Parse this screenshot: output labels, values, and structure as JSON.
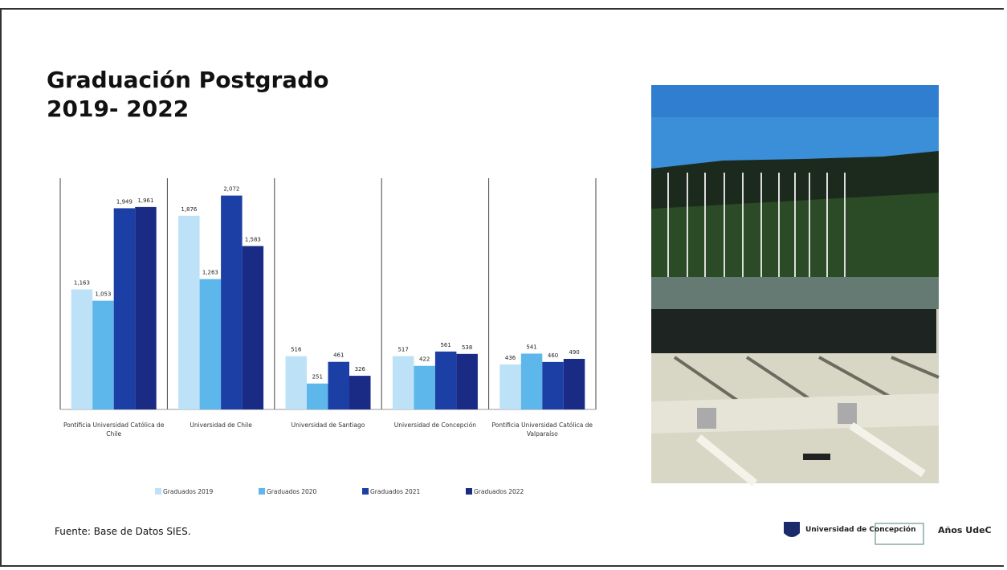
{
  "chart_data": {
    "type": "bar",
    "title": "Graduación Postgrado 2019- 2022",
    "categories": [
      "Pontificia Universidad Católica de Chile",
      "Universidad de Chile",
      "Universidad de Santiago",
      "Universidad de Concepción",
      "Pontificia Universidad Católica de Valparaíso"
    ],
    "series": [
      {
        "name": "Graduados 2019",
        "color": "#bde2f7",
        "values": [
          1163,
          1876,
          516,
          517,
          436
        ],
        "value_labels": [
          "1,163",
          "1,876",
          "516",
          "517",
          "436"
        ]
      },
      {
        "name": "Graduados 2020",
        "color": "#5db7ea",
        "values": [
          1053,
          1263,
          251,
          422,
          541
        ],
        "value_labels": [
          "1,053",
          "1,263",
          "251",
          "422",
          "541"
        ]
      },
      {
        "name": "Graduados 2021",
        "color": "#1c3fa6",
        "values": [
          1949,
          2072,
          461,
          561,
          460
        ],
        "value_labels": [
          "1,949",
          "2,072",
          "461",
          "561",
          "460"
        ]
      },
      {
        "name": "Graduados 2022",
        "color": "#1a2b86",
        "values": [
          1961,
          1583,
          326,
          538,
          490
        ],
        "value_labels": [
          "1,961",
          "1,583",
          "326",
          "538",
          "490"
        ]
      }
    ],
    "ylim": [
      0,
      2100
    ],
    "legend": "bottom"
  },
  "footer": {
    "source": "Fuente: Base de Datos SIES.",
    "logo_university": "Universidad de Concepción",
    "logo_anniversary": "Años UdeC"
  }
}
